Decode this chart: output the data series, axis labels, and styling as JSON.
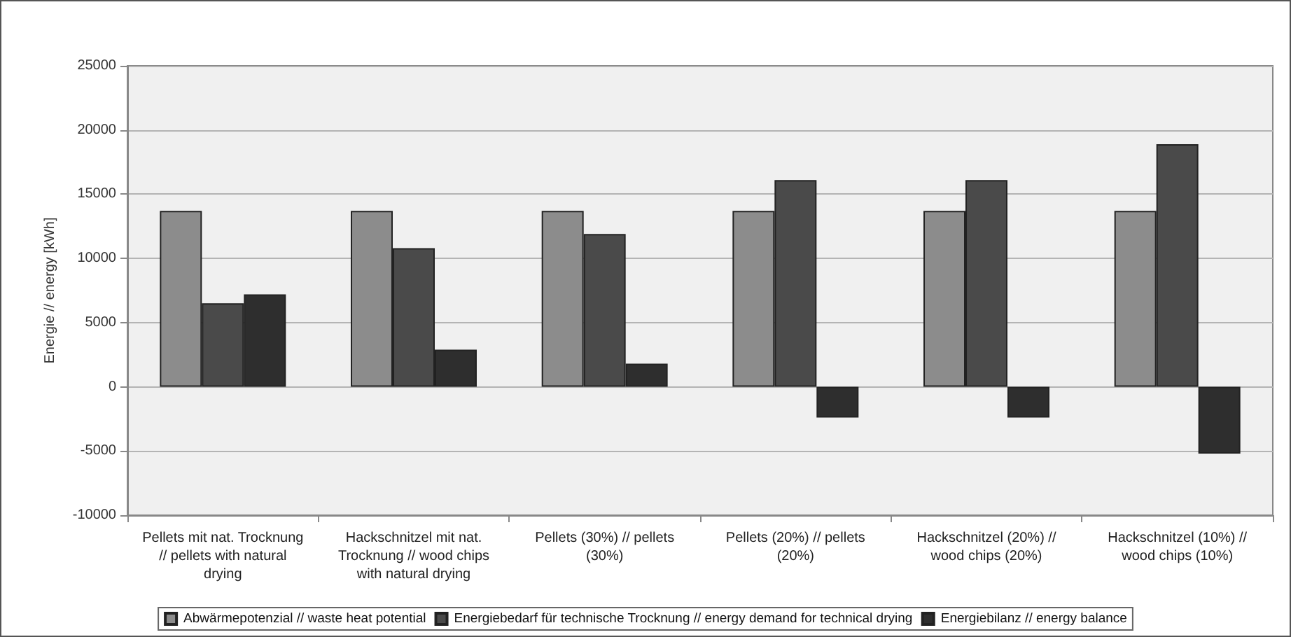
{
  "chart_data": {
    "type": "bar",
    "categories": [
      "Pellets mit nat. Trocknung // pellets with natural drying",
      "Hackschnitzel mit nat. Trocknung // wood chips with natural drying",
      "Pellets (30%) // pellets (30%)",
      "Pellets (20%) // pellets (20%)",
      "Hackschnitzel (20%) // wood chips (20%)",
      "Hackschnitzel (10%) // wood chips (10%)"
    ],
    "series": [
      {
        "name": "Abwärmepotenzial // waste heat potential",
        "color": "#8c8c8c",
        "values": [
          13700,
          13700,
          13700,
          13700,
          13700,
          13700
        ]
      },
      {
        "name": "Energiebedarf für technische Trocknung // energy demand for technical drying",
        "color": "#4a4a4a",
        "values": [
          6500,
          10800,
          11900,
          16100,
          16100,
          18900
        ]
      },
      {
        "name": "Energiebilanz // energy balance",
        "color": "#2e2e2e",
        "values": [
          7200,
          2900,
          1800,
          -2400,
          -2400,
          -5200
        ]
      }
    ],
    "ylabel": "Energie // energy [kWh]",
    "ylim": [
      -10000,
      25000
    ],
    "yticks": [
      -10000,
      -5000,
      0,
      5000,
      10000,
      15000,
      20000,
      25000
    ],
    "grid": "y",
    "legend": "bottom"
  }
}
